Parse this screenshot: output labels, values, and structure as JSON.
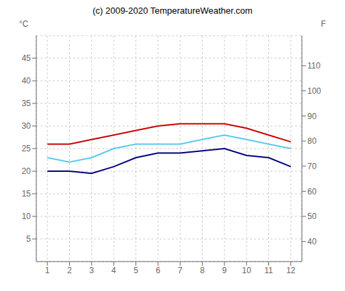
{
  "chart_data": {
    "type": "line",
    "title": "(c) 2009-2020 TemperatureWeather.com",
    "ylabel": "°C",
    "y2label": "F",
    "x": [
      1,
      2,
      3,
      4,
      5,
      6,
      7,
      8,
      9,
      10,
      11,
      12
    ],
    "series": [
      {
        "color": "#cc0000",
        "values": [
          26.0,
          26.0,
          27.0,
          28.0,
          29.0,
          30.0,
          30.5,
          30.5,
          30.5,
          29.5,
          28.0,
          26.5
        ]
      },
      {
        "color": "#55ccee",
        "values": [
          23.0,
          22.0,
          23.0,
          25.0,
          26.0,
          26.0,
          26.0,
          27.0,
          28.0,
          27.0,
          26.0,
          25.0
        ]
      },
      {
        "color": "#000080",
        "values": [
          20.0,
          20.0,
          19.5,
          21.0,
          23.0,
          24.0,
          24.0,
          24.5,
          25.0,
          23.5,
          23.0,
          21.0
        ]
      }
    ],
    "xlim": [
      0.5,
      12.5
    ],
    "xticks": [
      1,
      2,
      3,
      4,
      5,
      6,
      7,
      8,
      9,
      10,
      11,
      12
    ],
    "ylim": [
      0,
      50
    ],
    "yticks": [
      5,
      10,
      15,
      20,
      25,
      30,
      35,
      40,
      45
    ],
    "y2lim": [
      32,
      122
    ],
    "y2ticks": [
      40,
      50,
      60,
      70,
      80,
      90,
      100,
      110
    ],
    "grid": true
  }
}
